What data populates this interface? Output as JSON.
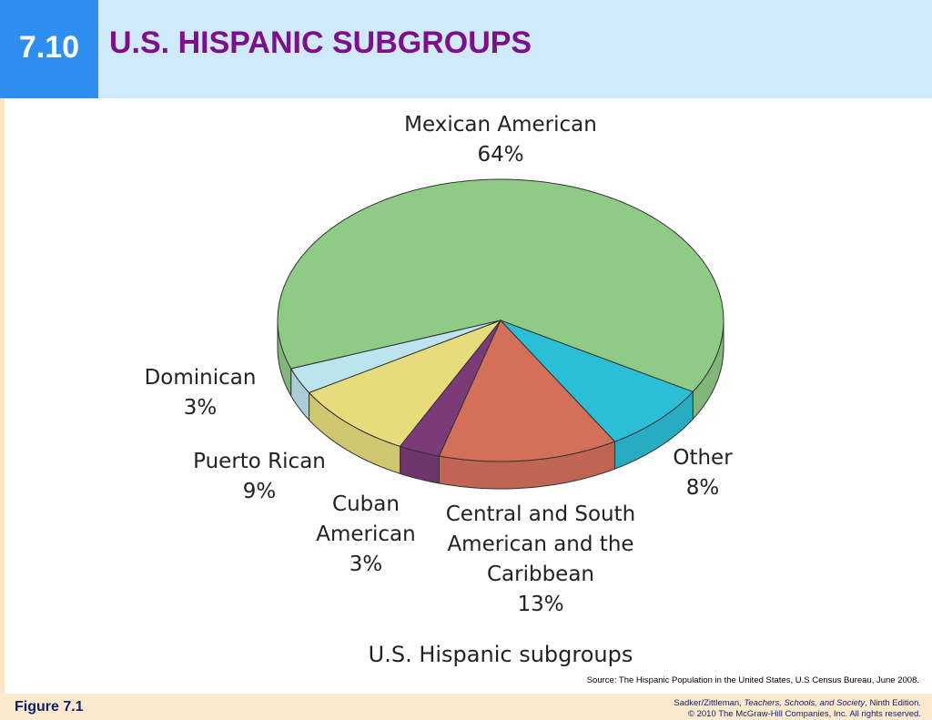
{
  "slide": {
    "number": "7.10",
    "title": "U.S. HISPANIC SUBGROUPS"
  },
  "chart_data": {
    "type": "pie",
    "title": "U.S. Hispanic subgroups",
    "categories": [
      "Mexican American",
      "Other",
      "Central and South American and the Caribbean",
      "Cuban American",
      "Puerto Rican",
      "Dominican"
    ],
    "values": [
      64,
      8,
      13,
      3,
      9,
      3
    ],
    "value_labels": [
      "64%",
      "8%",
      "13%",
      "3%",
      "9%",
      "3%"
    ],
    "colors": [
      "#8ecb85",
      "#2bbfd7",
      "#d4705a",
      "#7b3a78",
      "#e6dc7c",
      "#bce4ee"
    ]
  },
  "source": "Source: The Hispanic Population in the United States, U.S Census Bureau, June 2008.",
  "footer": {
    "figure": "Figure 7.1",
    "credit": [
      "Sadker/Zittleman, ",
      "Teachers, Schools, and Society",
      ", Ninth Edition."
    ],
    "copyright": "© 2010 The McGraw-Hill Companies, Inc. All rights reserved."
  }
}
